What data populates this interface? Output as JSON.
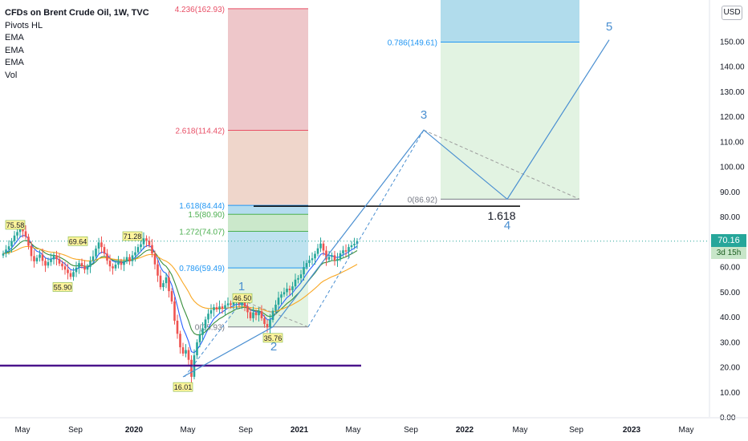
{
  "legend": {
    "title": "CFDs on Brent Crude Oil, 1W, TVC",
    "indicators": [
      "Pivots HL",
      "EMA",
      "EMA",
      "EMA",
      "Vol"
    ]
  },
  "currency_button": "USD",
  "last_price": {
    "value": "70.16",
    "countdown": "3d 15h",
    "color": "#26a69a"
  },
  "chart_data": {
    "type": "line",
    "series_type": "candlestick",
    "xlabel": "",
    "ylabel": "",
    "x_ticks": [
      "May",
      "Sep",
      "2020",
      "May",
      "Sep",
      "2021",
      "May",
      "Sep",
      "2022",
      "May",
      "Sep",
      "2023",
      "May"
    ],
    "y_ticks": [
      "0.00",
      "10.00",
      "20.00",
      "30.00",
      "40.00",
      "50.00",
      "60.00",
      "70.00",
      "80.00",
      "90.00",
      "100.00",
      "110.00",
      "120.00",
      "130.00",
      "140.00",
      "150.00"
    ],
    "ylim": [
      0,
      168
    ],
    "grid": false,
    "colors": {
      "up": "#26a69a",
      "down": "#ef5350",
      "ema_fast": "#2962ff",
      "ema_mid": "#388e3c",
      "ema_slow": "#f9a825",
      "wave": "#4a8fd1",
      "pivot_bg": "#fff59d",
      "support": "#4a148c"
    },
    "prices": [
      65.2,
      66.8,
      68.1,
      70.2,
      72.4,
      73.8,
      75.58,
      74.1,
      71.9,
      68.3,
      64.2,
      62.1,
      63.5,
      64.8,
      62.3,
      60.4,
      61.8,
      62.9,
      64.5,
      63.0,
      61.2,
      60.1,
      58.8,
      57.4,
      55.9,
      57.8,
      59.6,
      61.4,
      60.2,
      58.8,
      59.9,
      62.3,
      64.1,
      67.2,
      69.64,
      67.8,
      65.2,
      62.4,
      60.1,
      59.3,
      60.8,
      61.9,
      60.7,
      62.1,
      63.8,
      62.2,
      64.5,
      65.7,
      67.8,
      68.9,
      71.28,
      70.3,
      68.6,
      65.2,
      60.9,
      56.4,
      51.8,
      53.4,
      55.7,
      50.2,
      46.1,
      38.4,
      33.2,
      27.8,
      25.3,
      26.7,
      22.8,
      16.01,
      24.6,
      29.8,
      32.7,
      35.4,
      38.9,
      41.2,
      42.6,
      43.8,
      42.9,
      44.1,
      43.2,
      44.6,
      45.3,
      44.8,
      45.9,
      46.5,
      44.6,
      45.8,
      44.2,
      41.8,
      39.4,
      41.7,
      40.6,
      42.2,
      39.4,
      37.1,
      35.76,
      38.7,
      42.4,
      44.8,
      47.6,
      48.9,
      49.8,
      51.2,
      50.6,
      52.1,
      54.8,
      55.4,
      56.9,
      59.8,
      61.4,
      62.6,
      63.3,
      65.1,
      67.3,
      69.2,
      66.4,
      62.8,
      63.9,
      64.5,
      62.4,
      63.1,
      65.3,
      66.5,
      66.0,
      67.8,
      68.5,
      69.1,
      70.16
    ],
    "pivots": [
      {
        "label": "75.58",
        "type": "high"
      },
      {
        "label": "55.90",
        "type": "low"
      },
      {
        "label": "69.64",
        "type": "high"
      },
      {
        "label": "71.28",
        "type": "high"
      },
      {
        "label": "16.01",
        "type": "low"
      },
      {
        "label": "46.50",
        "type": "high"
      },
      {
        "label": "35.76",
        "type": "low"
      }
    ],
    "fib_extension": [
      {
        "label": "4.236(162.93)",
        "value": 162.93,
        "color": "#e84f66"
      },
      {
        "label": "2.618(114.42)",
        "value": 114.42,
        "color": "#e84f66"
      },
      {
        "label": "1.618(84.44)",
        "value": 84.44,
        "color": "#2196f3"
      },
      {
        "label": "1.5(80.90)",
        "value": 80.9,
        "color": "#4caf50"
      },
      {
        "label": "1.272(74.07)",
        "value": 74.07,
        "color": "#4caf50"
      },
      {
        "label": "0.786(59.49)",
        "value": 59.49,
        "color": "#2196f3"
      },
      {
        "label": "0(35.93)",
        "value": 35.93,
        "color": "#787b86"
      }
    ],
    "fib_projection": [
      {
        "label": "0.786(149.61)",
        "value": 149.61,
        "color": "#2196f3"
      },
      {
        "label": "0(86.92)",
        "value": 86.92,
        "color": "#787b86"
      }
    ],
    "waves": [
      "1",
      "2",
      "3",
      "4",
      "5"
    ],
    "wave_points": [
      16.01,
      35.93,
      114.5,
      86.9,
      150.5
    ],
    "annotations": [
      {
        "label": "1.618",
        "value": 84.44
      }
    ],
    "support_level": 20.5
  }
}
